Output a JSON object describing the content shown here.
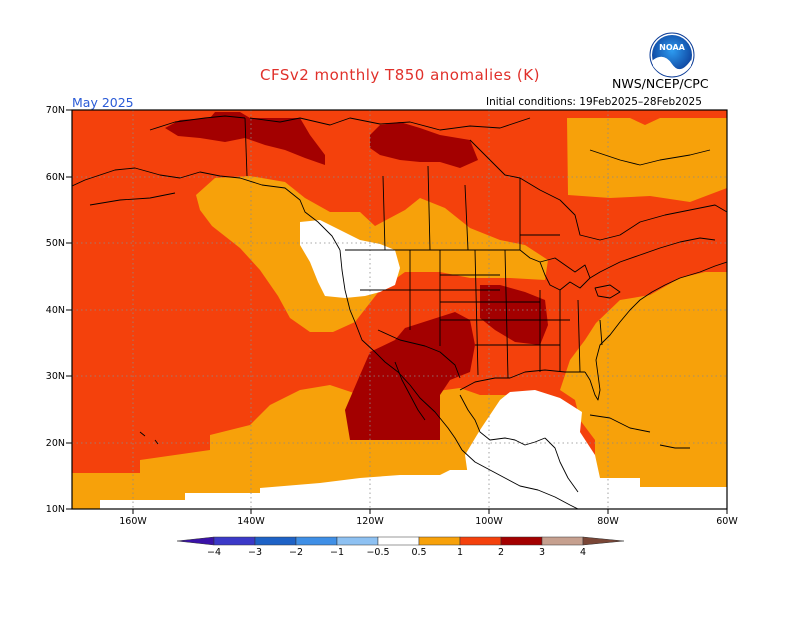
{
  "title": "CFSv2 monthly T850 anomalies (K)",
  "agency": "NWS/NCEP/CPC",
  "logo_text": "NOAA",
  "month": "May 2025",
  "initial_conditions": "Initial conditions: 19Feb2025–28Feb2025",
  "map": {
    "lat_labels": [
      "70N",
      "60N",
      "50N",
      "40N",
      "30N",
      "20N",
      "10N"
    ],
    "lon_labels": [
      "160W",
      "140W",
      "120W",
      "100W",
      "80W",
      "60W"
    ]
  },
  "colorbar": {
    "labels": [
      "−4",
      "−3",
      "−2",
      "−1",
      "−0.5",
      "0.5",
      "1",
      "2",
      "3",
      "4"
    ],
    "colors": {
      "lt_m4": "#3a12a8",
      "m4_m3": "#3b39c8",
      "m3_m2": "#1e62c6",
      "m2_m1": "#3f8fe6",
      "m1_m05": "#8ec1f2",
      "neutral": "#ffffff",
      "p05_p1": "#f7a10a",
      "p1_p2": "#f4410c",
      "p2_p3": "#a30000",
      "p3_p4": "#c6a08f",
      "gt_p4": "#7a4636"
    }
  }
}
